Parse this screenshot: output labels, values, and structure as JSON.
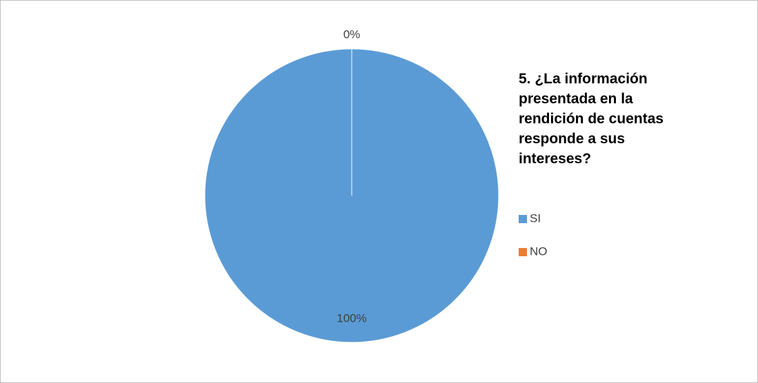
{
  "chart_data": {
    "type": "pie",
    "title": "5. ¿La información presentada en la rendición de cuentas responde a sus intereses?",
    "categories": [
      "SI",
      "NO"
    ],
    "values": [
      100,
      0
    ],
    "value_labels": [
      "100%",
      "0%"
    ],
    "colors": [
      "#5b9bd5",
      "#ed7d31"
    ],
    "legend": "right"
  }
}
